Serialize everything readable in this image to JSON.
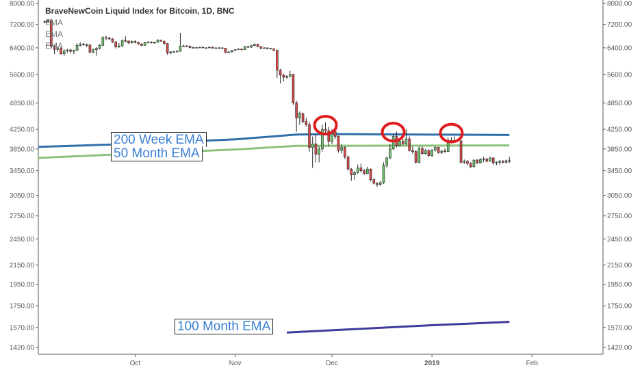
{
  "chart_data": {
    "type": "candlestick",
    "title": "BraveNewCoin Liquid Index for Bitcoin, 1D, BNC",
    "legend": [
      "EMA",
      "EMA",
      "EMA"
    ],
    "y_ticks": [
      8000,
      7200,
      6400,
      5600,
      4850,
      4250,
      3850,
      3450,
      3050,
      2750,
      2450,
      2150,
      1950,
      1750,
      1570,
      1420
    ],
    "y_tick_labels": [
      "8000.00",
      "7200.00",
      "6400.00",
      "5600.00",
      "4850.00",
      "4250.00",
      "3850.00",
      "3450.00",
      "3050.00",
      "2750.00",
      "2450.00",
      "2150.00",
      "1950.00",
      "1750.00",
      "1570.00",
      "1420.00"
    ],
    "x_labels": [
      {
        "label": "Oct",
        "date": "2018-10-01",
        "bold": false
      },
      {
        "label": "Nov",
        "date": "2018-11-01",
        "bold": false
      },
      {
        "label": "Dec",
        "date": "2018-12-01",
        "bold": false
      },
      {
        "label": "2019",
        "date": "2019-01-01",
        "bold": true
      },
      {
        "label": "Feb",
        "date": "2019-02-01",
        "bold": false
      }
    ],
    "x_range": [
      "2018-09-01",
      "2019-02-23"
    ],
    "y_scale": "log",
    "grid": false,
    "ohlc": [
      [
        "2018-09-03",
        7280,
        7340,
        7240,
        7300
      ],
      [
        "2018-09-04",
        7300,
        7390,
        7250,
        7350
      ],
      [
        "2018-09-05",
        7350,
        7400,
        6400,
        6450
      ],
      [
        "2018-09-06",
        6450,
        6500,
        6200,
        6350
      ],
      [
        "2018-09-07",
        6350,
        6420,
        6280,
        6380
      ],
      [
        "2018-09-08",
        6380,
        6420,
        6180,
        6210
      ],
      [
        "2018-09-09",
        6210,
        6350,
        6150,
        6300
      ],
      [
        "2018-09-10",
        6300,
        6370,
        6250,
        6330
      ],
      [
        "2018-09-11",
        6330,
        6380,
        6230,
        6290
      ],
      [
        "2018-09-12",
        6290,
        6340,
        6200,
        6320
      ],
      [
        "2018-09-13",
        6320,
        6550,
        6300,
        6480
      ],
      [
        "2018-09-14",
        6480,
        6580,
        6450,
        6520
      ],
      [
        "2018-09-15",
        6520,
        6560,
        6470,
        6500
      ],
      [
        "2018-09-16",
        6500,
        6540,
        6420,
        6490
      ],
      [
        "2018-09-17",
        6490,
        6520,
        6240,
        6260
      ],
      [
        "2018-09-18",
        6260,
        6380,
        6230,
        6340
      ],
      [
        "2018-09-19",
        6340,
        6420,
        6150,
        6380
      ],
      [
        "2018-09-20",
        6380,
        6520,
        6350,
        6480
      ],
      [
        "2018-09-21",
        6480,
        6780,
        6460,
        6740
      ],
      [
        "2018-09-22",
        6740,
        6800,
        6650,
        6720
      ],
      [
        "2018-09-23",
        6720,
        6760,
        6660,
        6690
      ],
      [
        "2018-09-24",
        6690,
        6720,
        6560,
        6590
      ],
      [
        "2018-09-25",
        6590,
        6620,
        6380,
        6430
      ],
      [
        "2018-09-26",
        6430,
        6560,
        6400,
        6460
      ],
      [
        "2018-09-27",
        6460,
        6680,
        6440,
        6640
      ],
      [
        "2018-09-28",
        6640,
        6780,
        6580,
        6620
      ],
      [
        "2018-09-29",
        6620,
        6640,
        6520,
        6560
      ],
      [
        "2018-09-30",
        6560,
        6640,
        6540,
        6610
      ],
      [
        "2018-10-01",
        6610,
        6650,
        6540,
        6580
      ],
      [
        "2018-10-02",
        6580,
        6600,
        6500,
        6520
      ],
      [
        "2018-10-03",
        6520,
        6550,
        6450,
        6480
      ],
      [
        "2018-10-04",
        6480,
        6600,
        6470,
        6570
      ],
      [
        "2018-10-05",
        6570,
        6620,
        6540,
        6590
      ],
      [
        "2018-10-06",
        6590,
        6610,
        6540,
        6560
      ],
      [
        "2018-10-07",
        6560,
        6600,
        6530,
        6580
      ],
      [
        "2018-10-08",
        6580,
        6680,
        6570,
        6650
      ],
      [
        "2018-10-09",
        6650,
        6670,
        6600,
        6620
      ],
      [
        "2018-10-10",
        6620,
        6630,
        6500,
        6540
      ],
      [
        "2018-10-11",
        6540,
        6560,
        6180,
        6240
      ],
      [
        "2018-10-12",
        6240,
        6300,
        6200,
        6270
      ],
      [
        "2018-10-13",
        6270,
        6300,
        6240,
        6280
      ],
      [
        "2018-10-14",
        6280,
        6320,
        6260,
        6290
      ],
      [
        "2018-10-15",
        6290,
        6900,
        6280,
        6450
      ],
      [
        "2018-10-16",
        6450,
        6500,
        6420,
        6460
      ],
      [
        "2018-10-17",
        6460,
        6490,
        6430,
        6450
      ],
      [
        "2018-10-18",
        6450,
        6480,
        6380,
        6410
      ],
      [
        "2018-10-19",
        6410,
        6430,
        6380,
        6400
      ],
      [
        "2018-10-20",
        6400,
        6420,
        6380,
        6410
      ],
      [
        "2018-10-21",
        6410,
        6430,
        6390,
        6420
      ],
      [
        "2018-10-22",
        6420,
        6440,
        6390,
        6400
      ],
      [
        "2018-10-23",
        6400,
        6420,
        6380,
        6400
      ],
      [
        "2018-10-24",
        6400,
        6440,
        6390,
        6420
      ],
      [
        "2018-10-25",
        6420,
        6440,
        6380,
        6390
      ],
      [
        "2018-10-26",
        6390,
        6410,
        6370,
        6400
      ],
      [
        "2018-10-27",
        6400,
        6420,
        6380,
        6400
      ],
      [
        "2018-10-28",
        6400,
        6410,
        6370,
        6390
      ],
      [
        "2018-10-29",
        6390,
        6400,
        6230,
        6260
      ],
      [
        "2018-10-30",
        6260,
        6290,
        6240,
        6270
      ],
      [
        "2018-10-31",
        6270,
        6330,
        6250,
        6320
      ],
      [
        "2018-11-01",
        6320,
        6360,
        6310,
        6340
      ],
      [
        "2018-11-02",
        6340,
        6380,
        6330,
        6360
      ],
      [
        "2018-11-03",
        6360,
        6370,
        6320,
        6340
      ],
      [
        "2018-11-04",
        6340,
        6460,
        6330,
        6440
      ],
      [
        "2018-11-05",
        6440,
        6460,
        6400,
        6420
      ],
      [
        "2018-11-06",
        6420,
        6490,
        6400,
        6470
      ],
      [
        "2018-11-07",
        6470,
        6540,
        6460,
        6520
      ],
      [
        "2018-11-08",
        6520,
        6530,
        6420,
        6440
      ],
      [
        "2018-11-09",
        6440,
        6450,
        6360,
        6380
      ],
      [
        "2018-11-10",
        6380,
        6420,
        6370,
        6400
      ],
      [
        "2018-11-11",
        6400,
        6410,
        6350,
        6380
      ],
      [
        "2018-11-12",
        6380,
        6400,
        6350,
        6370
      ],
      [
        "2018-11-13",
        6370,
        6380,
        6300,
        6320
      ],
      [
        "2018-11-14",
        6320,
        6340,
        5500,
        5720
      ],
      [
        "2018-11-15",
        5720,
        5760,
        5350,
        5580
      ],
      [
        "2018-11-16",
        5580,
        5620,
        5400,
        5520
      ],
      [
        "2018-11-17",
        5520,
        5580,
        5480,
        5550
      ],
      [
        "2018-11-18",
        5550,
        5700,
        5520,
        5600
      ],
      [
        "2018-11-19",
        5600,
        5620,
        4800,
        4850
      ],
      [
        "2018-11-20",
        4850,
        4900,
        4200,
        4500
      ],
      [
        "2018-11-21",
        4500,
        4650,
        4350,
        4600
      ],
      [
        "2018-11-22",
        4600,
        4620,
        4380,
        4420
      ],
      [
        "2018-11-23",
        4420,
        4500,
        4300,
        4350
      ],
      [
        "2018-11-24",
        4350,
        4400,
        3800,
        3880
      ],
      [
        "2018-11-25",
        3880,
        4100,
        3500,
        3950
      ],
      [
        "2018-11-26",
        3950,
        4150,
        3600,
        3750
      ],
      [
        "2018-11-27",
        3750,
        3900,
        3600,
        3850
      ],
      [
        "2018-11-28",
        3850,
        4350,
        3800,
        4250
      ],
      [
        "2018-11-29",
        4250,
        4400,
        4150,
        4220
      ],
      [
        "2018-11-30",
        4220,
        4300,
        3900,
        4000
      ],
      [
        "2018-12-01",
        4000,
        4250,
        3950,
        4200
      ],
      [
        "2018-12-02",
        4200,
        4300,
        4050,
        4100
      ],
      [
        "2018-12-03",
        4100,
        4120,
        3780,
        3820
      ],
      [
        "2018-12-04",
        3820,
        3950,
        3760,
        3880
      ],
      [
        "2018-12-05",
        3880,
        3900,
        3660,
        3700
      ],
      [
        "2018-12-06",
        3700,
        3720,
        3450,
        3480
      ],
      [
        "2018-12-07",
        3480,
        3500,
        3280,
        3380
      ],
      [
        "2018-12-08",
        3380,
        3450,
        3300,
        3420
      ],
      [
        "2018-12-09",
        3420,
        3560,
        3400,
        3500
      ],
      [
        "2018-12-10",
        3500,
        3580,
        3420,
        3450
      ],
      [
        "2018-12-11",
        3450,
        3480,
        3380,
        3400
      ],
      [
        "2018-12-12",
        3400,
        3520,
        3390,
        3480
      ],
      [
        "2018-12-13",
        3480,
        3490,
        3270,
        3300
      ],
      [
        "2018-12-14",
        3300,
        3320,
        3220,
        3240
      ],
      [
        "2018-12-15",
        3240,
        3260,
        3180,
        3220
      ],
      [
        "2018-12-16",
        3220,
        3280,
        3200,
        3250
      ],
      [
        "2018-12-17",
        3250,
        3600,
        3230,
        3550
      ],
      [
        "2018-12-18",
        3550,
        3700,
        3500,
        3680
      ],
      [
        "2018-12-19",
        3680,
        3950,
        3660,
        3850
      ],
      [
        "2018-12-20",
        3850,
        4150,
        3820,
        4100
      ],
      [
        "2018-12-21",
        4100,
        4200,
        3880,
        3920
      ],
      [
        "2018-12-22",
        3920,
        4050,
        3900,
        4000
      ],
      [
        "2018-12-23",
        4000,
        4050,
        3920,
        3950
      ],
      [
        "2018-12-24",
        3950,
        4250,
        3920,
        4050
      ],
      [
        "2018-12-25",
        4050,
        4100,
        3800,
        3820
      ],
      [
        "2018-12-26",
        3820,
        3900,
        3760,
        3800
      ],
      [
        "2018-12-27",
        3800,
        3820,
        3580,
        3600
      ],
      [
        "2018-12-28",
        3600,
        3900,
        3580,
        3860
      ],
      [
        "2018-12-29",
        3860,
        3900,
        3740,
        3760
      ],
      [
        "2018-12-30",
        3760,
        3850,
        3740,
        3820
      ],
      [
        "2018-12-31",
        3820,
        3840,
        3700,
        3720
      ],
      [
        "2019-01-01",
        3720,
        3850,
        3700,
        3830
      ],
      [
        "2019-01-02",
        3830,
        3900,
        3800,
        3880
      ],
      [
        "2019-01-03",
        3880,
        3890,
        3760,
        3780
      ],
      [
        "2019-01-04",
        3780,
        3830,
        3750,
        3810
      ],
      [
        "2019-01-05",
        3810,
        3860,
        3780,
        3800
      ],
      [
        "2019-01-06",
        3800,
        4080,
        3790,
        4020
      ],
      [
        "2019-01-07",
        4020,
        4080,
        3980,
        4000
      ],
      [
        "2019-01-08",
        4000,
        4100,
        3980,
        4020
      ],
      [
        "2019-01-09",
        4020,
        4050,
        3990,
        4010
      ],
      [
        "2019-01-10",
        4010,
        4030,
        3580,
        3600
      ],
      [
        "2019-01-11",
        3600,
        3650,
        3570,
        3620
      ],
      [
        "2019-01-12",
        3620,
        3640,
        3550,
        3580
      ],
      [
        "2019-01-13",
        3580,
        3600,
        3500,
        3520
      ],
      [
        "2019-01-14",
        3520,
        3660,
        3510,
        3640
      ],
      [
        "2019-01-15",
        3640,
        3660,
        3570,
        3590
      ],
      [
        "2019-01-16",
        3590,
        3680,
        3580,
        3650
      ],
      [
        "2019-01-17",
        3650,
        3700,
        3600,
        3660
      ],
      [
        "2019-01-18",
        3660,
        3680,
        3600,
        3620
      ],
      [
        "2019-01-19",
        3620,
        3700,
        3610,
        3680
      ],
      [
        "2019-01-20",
        3680,
        3690,
        3560,
        3590
      ],
      [
        "2019-01-21",
        3590,
        3620,
        3550,
        3600
      ],
      [
        "2019-01-22",
        3600,
        3640,
        3560,
        3620
      ],
      [
        "2019-01-23",
        3620,
        3640,
        3580,
        3600
      ],
      [
        "2019-01-24",
        3600,
        3650,
        3580,
        3630
      ],
      [
        "2019-01-25",
        3630,
        3700,
        3590,
        3620
      ]
    ],
    "series": [
      {
        "color": "#2f6fa8",
        "values": [
          [
            "2018-09-01",
            3890
          ],
          [
            "2018-10-01",
            3950
          ],
          [
            "2018-11-01",
            4040
          ],
          [
            "2018-11-20",
            4140
          ],
          [
            "2018-12-01",
            4150
          ],
          [
            "2019-01-25",
            4130
          ]
        ]
      },
      {
        "color": "#8bc17a",
        "values": [
          [
            "2018-09-01",
            3680
          ],
          [
            "2018-10-01",
            3760
          ],
          [
            "2018-11-01",
            3840
          ],
          [
            "2018-11-20",
            3910
          ],
          [
            "2019-01-25",
            3920
          ]
        ]
      },
      {
        "color": "#3f3a9e",
        "values": [
          [
            "2018-11-17",
            1530
          ],
          [
            "2018-12-01",
            1548
          ],
          [
            "2019-01-01",
            1588
          ],
          [
            "2019-01-25",
            1615
          ]
        ]
      }
    ],
    "markers": [
      {
        "type": "circle",
        "date": "2018-11-29",
        "value": 4340,
        "color": "#e01b1b"
      },
      {
        "type": "circle",
        "date": "2018-12-20",
        "value": 4190,
        "color": "#e01b1b"
      },
      {
        "type": "circle",
        "date": "2019-01-07",
        "value": 4170,
        "color": "#e01b1b"
      }
    ],
    "annotations": [
      "200 Week EMA",
      "50 Month EMA",
      "100 Month EMA"
    ]
  }
}
